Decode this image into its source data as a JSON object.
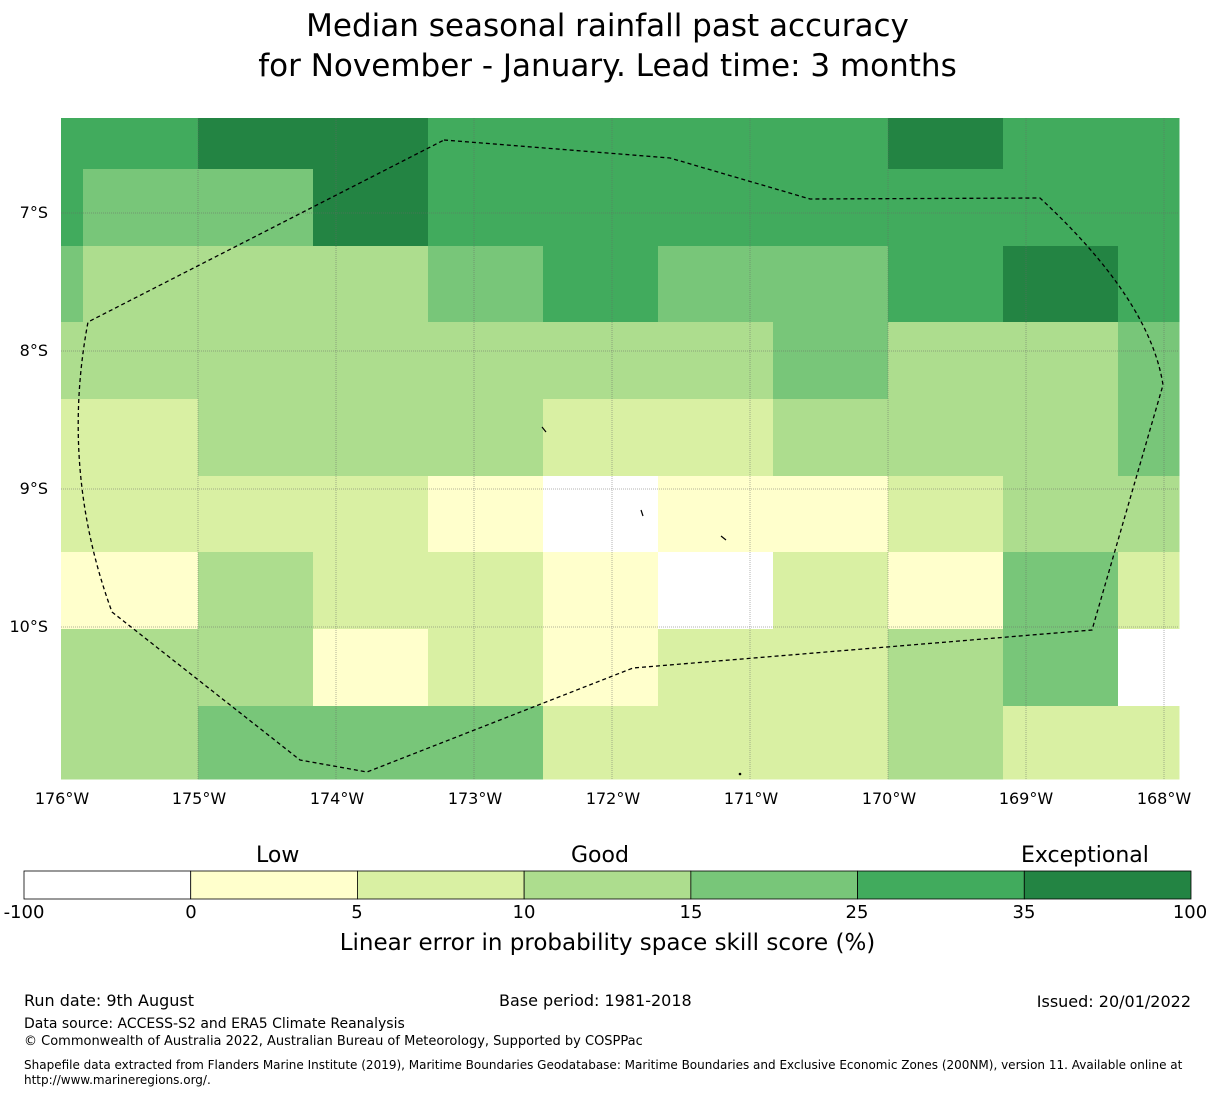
{
  "title_line1": "Median seasonal rainfall past accuracy",
  "title_line2": "for November - January. Lead time: 3 months",
  "map": {
    "lon_ticks": [
      "176°W",
      "175°W",
      "174°W",
      "173°W",
      "172°W",
      "171°W",
      "170°W",
      "169°W",
      "168°W"
    ],
    "lat_ticks": [
      "7°S",
      "8°S",
      "9°S",
      "10°S"
    ],
    "grid_skill_classes": [
      [
        5,
        6,
        6,
        5,
        5,
        5,
        5,
        6,
        5,
        5
      ],
      [
        5,
        4,
        6,
        5,
        5,
        5,
        5,
        5,
        5,
        5
      ],
      [
        4,
        3,
        3,
        4,
        5,
        4,
        4,
        5,
        6,
        5
      ],
      [
        3,
        3,
        3,
        3,
        3,
        3,
        4,
        3,
        3,
        4
      ],
      [
        2,
        3,
        3,
        3,
        2,
        2,
        3,
        3,
        3,
        4
      ],
      [
        2,
        2,
        2,
        1,
        0,
        1,
        1,
        2,
        3,
        3
      ],
      [
        1,
        3,
        2,
        2,
        1,
        0,
        2,
        1,
        4,
        2
      ],
      [
        3,
        3,
        1,
        2,
        1,
        2,
        2,
        3,
        4,
        0
      ],
      [
        3,
        4,
        4,
        4,
        2,
        2,
        2,
        3,
        2,
        2
      ]
    ],
    "legend_categories": [
      "Low",
      "Good",
      "Exceptional"
    ]
  },
  "colorbar": {
    "ticks": [
      "-100",
      "0",
      "5",
      "10",
      "15",
      "25",
      "35",
      "100"
    ],
    "colors": [
      "#ffffff",
      "#ffffcc",
      "#d9f0a3",
      "#addd8e",
      "#78c679",
      "#41ab5d",
      "#238443"
    ],
    "label": "Linear error in probability space skill score (%)"
  },
  "footer": {
    "run_date": "Run date: 9th August",
    "base_period": "Base period: 1981-2018",
    "issued": "Issued: 20/01/2022",
    "data_source": "Data source: ACCESS-S2 and ERA5 Climate Reanalysis",
    "copyright": "© Commonwealth of Australia 2022, Australian Bureau of Meteorology, Supported by COSPPac",
    "shapefile_line1": "Shapefile data extracted from Flanders Marine Institute (2019), Maritime Boundaries Geodatabase: Maritime Boundaries and Exclusive Economic Zones (200NM), version 11. Available online at",
    "shapefile_line2": "http://www.marineregions.org/."
  }
}
